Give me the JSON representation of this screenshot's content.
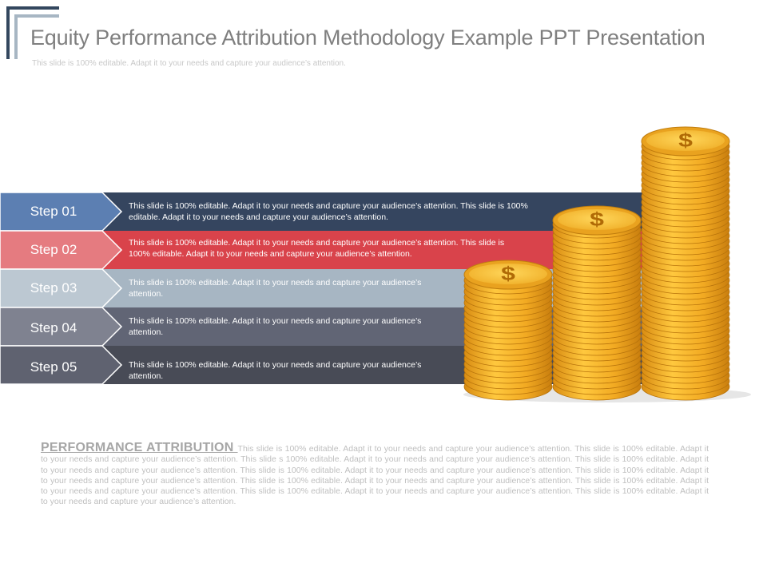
{
  "slide": {
    "title": "Equity Performance Attribution Methodology Example PPT Presentation",
    "subtitle": "This slide is 100% editable. Adapt it to your needs and capture your audience’s attention."
  },
  "steps": [
    {
      "label": "Step 01",
      "color": "#35455f",
      "chevron_color": "#5c7fb2",
      "text": "This slide is 100% editable. Adapt it to your needs and capture your audience’s attention. This slide is 100% editable. Adapt it to your needs and capture your audience’s attention."
    },
    {
      "label": "Step 02",
      "color": "#d9434b",
      "chevron_color": "#e57b80",
      "text": "This slide is 100% editable. Adapt it to your needs and capture your audience’s attention. This slide is 100% editable. Adapt it to your needs and capture your audience’s attention."
    },
    {
      "label": "Step 03",
      "color": "#a7b6c3",
      "chevron_color": "#bcc8d2",
      "text": "This slide is 100% editable. Adapt it to your needs and capture your audience’s attention."
    },
    {
      "label": "Step 04",
      "color": "#616575",
      "chevron_color": "#7f8290",
      "text": "This slide is 100% editable. Adapt it to your needs and capture your audience’s attention."
    },
    {
      "label": "Step 05",
      "color": "#484b56",
      "chevron_color": "#5f6270",
      "text": "This slide is 100% editable. Adapt it to your needs and capture your audience’s attention."
    }
  ],
  "coins": {
    "symbol": "$",
    "color": "#f2b632",
    "edge_color": "#d28a10"
  },
  "performance": {
    "heading": "PERFORMANCE ATTRIBUTION ",
    "body": "This slide is 100% editable. Adapt it to your needs and capture your audience’s attention. This slide is 100% editable. Adapt it to your needs and capture your audience’s attention. This slide s 100% editable. Adapt it to your needs and capture your audience’s attention. This slide is 100% editable. Adapt it to your needs and capture your audience’s attention. This slide is 100% editable. Adapt it to your needs and capture your audience’s attention. This slide is 100% editable. Adapt it to your needs and capture your audience’s attention. This slide is 100% editable. Adapt it to your needs and capture your audience’s attention. This slide is 100% editable. Adapt it to your needs and capture your audience’s attention. This slide is 100% editable. Adapt it to your needs and capture your audience’s attention. This slide is 100% editable. Adapt it to your needs and capture your audience’s attention."
  }
}
